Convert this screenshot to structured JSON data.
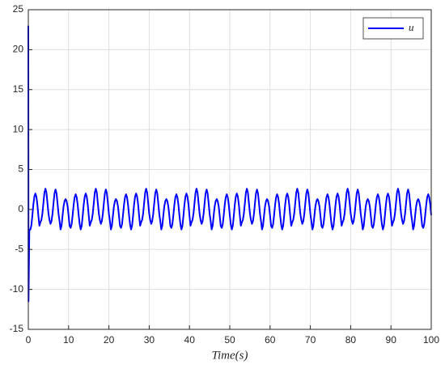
{
  "chart_data": {
    "type": "line",
    "xlabel": "Time(s)",
    "xlim": [
      0,
      100
    ],
    "xticks": [
      0,
      10,
      20,
      30,
      40,
      50,
      60,
      70,
      80,
      90,
      100
    ],
    "ylim": [
      -15,
      25
    ],
    "yticks": [
      -15,
      -10,
      -5,
      0,
      5,
      10,
      15,
      20,
      25
    ],
    "grid": true,
    "legend": "upper right",
    "x": [
      0,
      0.05,
      0.25,
      0.5,
      0.75,
      1,
      1.25,
      1.5,
      1.75,
      2,
      2.25,
      2.5,
      2.75,
      3,
      3.25,
      3.5,
      3.75,
      4,
      4.25,
      4.5,
      4.75,
      5,
      5.25,
      5.5,
      5.75,
      6,
      6.25,
      6.5,
      6.75,
      7,
      7.25,
      7.5,
      7.75,
      8,
      8.25,
      8.5,
      8.75,
      9,
      9.25,
      9.5,
      9.75,
      10,
      10.25,
      10.5,
      10.75,
      11,
      11.25,
      11.5,
      11.75,
      12,
      12.25,
      12.5,
      12.75,
      13,
      13.25,
      13.5,
      13.75,
      14,
      14.25,
      14.5,
      14.75,
      15,
      15.25,
      15.5,
      15.75,
      16,
      16.25,
      16.5,
      16.75,
      17,
      17.25,
      17.5,
      17.75,
      18,
      18.25,
      18.5,
      18.75,
      19,
      19.25,
      19.5,
      19.75,
      20,
      20.25,
      20.5,
      20.75,
      21,
      21.25,
      21.5,
      21.75,
      22,
      22.25,
      22.5,
      22.75,
      23,
      23.25,
      23.5,
      23.75,
      24,
      24.25,
      24.5,
      24.75,
      25,
      25.25,
      25.5,
      25.75,
      26,
      26.25,
      26.5,
      26.75,
      27,
      27.25,
      27.5,
      27.75,
      28,
      28.25,
      28.5,
      28.75,
      29,
      29.25,
      29.5,
      29.75,
      30,
      30.25,
      30.5,
      30.75,
      31,
      31.25,
      31.5,
      31.75,
      32,
      32.25,
      32.5,
      32.75,
      33,
      33.25,
      33.5,
      33.75,
      34,
      34.25,
      34.5,
      34.75,
      35,
      35.25,
      35.5,
      35.75,
      36,
      36.25,
      36.5,
      36.75,
      37,
      37.25,
      37.5,
      37.75,
      38,
      38.25,
      38.5,
      38.75,
      39,
      39.25,
      39.5,
      39.75,
      40,
      40.25,
      40.5,
      40.75,
      41,
      41.25,
      41.5,
      41.75,
      42,
      42.25,
      42.5,
      42.75,
      43,
      43.25,
      43.5,
      43.75,
      44,
      44.25,
      44.5,
      44.75,
      45,
      45.25,
      45.5,
      45.75,
      46,
      46.25,
      46.5,
      46.75,
      47,
      47.25,
      47.5,
      47.75,
      48,
      48.25,
      48.5,
      48.75,
      49,
      49.25,
      49.5,
      49.75,
      50,
      50.25,
      50.5,
      50.75,
      51,
      51.25,
      51.5,
      51.75,
      52,
      52.25,
      52.5,
      52.75,
      53,
      53.25,
      53.5,
      53.75,
      54,
      54.25,
      54.5,
      54.75,
      55,
      55.25,
      55.5,
      55.75,
      56,
      56.25,
      56.5,
      56.75,
      57,
      57.25,
      57.5,
      57.75,
      58,
      58.25,
      58.5,
      58.75,
      59,
      59.25,
      59.5,
      59.75,
      60,
      60.25,
      60.5,
      60.75,
      61,
      61.25,
      61.5,
      61.75,
      62,
      62.25,
      62.5,
      62.75,
      63,
      63.25,
      63.5,
      63.75,
      64,
      64.25,
      64.5,
      64.75,
      65,
      65.25,
      65.5,
      65.75,
      66,
      66.25,
      66.5,
      66.75,
      67,
      67.25,
      67.5,
      67.75,
      68,
      68.25,
      68.5,
      68.75,
      69,
      69.25,
      69.5,
      69.75,
      70,
      70.25,
      70.5,
      70.75,
      71,
      71.25,
      71.5,
      71.75,
      72,
      72.25,
      72.5,
      72.75,
      73,
      73.25,
      73.5,
      73.75,
      74,
      74.25,
      74.5,
      74.75,
      75,
      75.25,
      75.5,
      75.75,
      76,
      76.25,
      76.5,
      76.75,
      77,
      77.25,
      77.5,
      77.75,
      78,
      78.25,
      78.5,
      78.75,
      79,
      79.25,
      79.5,
      79.75,
      80,
      80.25,
      80.5,
      80.75,
      81,
      81.25,
      81.5,
      81.75,
      82,
      82.25,
      82.5,
      82.75,
      83,
      83.25,
      83.5,
      83.75,
      84,
      84.25,
      84.5,
      84.75,
      85,
      85.25,
      85.5,
      85.75,
      86,
      86.25,
      86.5,
      86.75,
      87,
      87.25,
      87.5,
      87.75,
      88,
      88.25,
      88.5,
      88.75,
      89,
      89.25,
      89.5,
      89.75,
      90,
      90.25,
      90.5,
      90.75,
      91,
      91.25,
      91.5,
      91.75,
      92,
      92.25,
      92.5,
      92.75,
      93,
      93.25,
      93.5,
      93.75,
      94,
      94.25,
      94.5,
      94.75,
      95,
      95.25,
      95.5,
      95.75,
      96,
      96.25,
      96.5,
      96.75,
      97,
      97.25,
      97.5,
      97.75,
      98,
      98.25,
      98.5,
      98.75,
      99,
      99.25,
      99.5,
      99.75,
      100
    ],
    "series": [
      {
        "name": "u",
        "color": "#0000ff",
        "values": [
          23,
          -11.5,
          -2.6,
          -2.5,
          -2.03,
          -0.78,
          0.62,
          1.62,
          2,
          1.62,
          0.62,
          -0.78,
          -2.03,
          -1.6,
          -1.3,
          -0.5,
          0.81,
          2.11,
          2.6,
          2.11,
          0.81,
          -0.5,
          -1.3,
          -1.8,
          -1.46,
          -0.56,
          0.78,
          2.03,
          2.5,
          2.03,
          0.78,
          -0.56,
          -1.46,
          -2.5,
          -2.03,
          -0.78,
          0.4,
          1.05,
          1.3,
          1.05,
          0.4,
          -0.78,
          -2.03,
          -2.3,
          -1.86,
          -0.71,
          0.59,
          1.54,
          1.9,
          1.54,
          0.59,
          -0.71,
          -1.86,
          -2.5,
          -2.03,
          -0.78,
          0.62,
          1.62,
          2,
          1.62,
          0.62,
          -0.78,
          -2.03,
          -1.6,
          -1.3,
          -0.5,
          0.81,
          2.11,
          2.6,
          2.11,
          0.81,
          -0.5,
          -1.3,
          -1.8,
          -1.46,
          -0.56,
          0.78,
          2.03,
          2.5,
          2.03,
          0.78,
          -0.56,
          -1.46,
          -2.5,
          -2.03,
          -0.78,
          0.4,
          1.05,
          1.3,
          1.05,
          0.4,
          -0.78,
          -2.03,
          -2.3,
          -1.86,
          -0.71,
          0.59,
          1.54,
          1.9,
          1.54,
          0.59,
          -0.71,
          -1.86,
          -2.5,
          -2.03,
          -0.78,
          0.62,
          1.62,
          2,
          1.62,
          0.62,
          -0.78,
          -2.03,
          -1.6,
          -1.3,
          -0.5,
          0.81,
          2.11,
          2.6,
          2.11,
          0.81,
          -0.5,
          -1.3,
          -1.8,
          -1.46,
          -0.56,
          0.78,
          2.03,
          2.5,
          2.03,
          0.78,
          -0.56,
          -1.46,
          -2.5,
          -2.03,
          -0.78,
          0.4,
          1.05,
          1.3,
          1.05,
          0.4,
          -0.78,
          -2.03,
          -2.3,
          -1.86,
          -0.71,
          0.59,
          1.54,
          1.9,
          1.54,
          0.59,
          -0.71,
          -1.86,
          -2.5,
          -2.03,
          -0.78,
          0.62,
          1.62,
          2,
          1.62,
          0.62,
          -0.78,
          -2.03,
          -1.6,
          -1.3,
          -0.5,
          0.81,
          2.11,
          2.6,
          2.11,
          0.81,
          -0.5,
          -1.3,
          -1.8,
          -1.46,
          -0.56,
          0.78,
          2.03,
          2.5,
          2.03,
          0.78,
          -0.56,
          -1.46,
          -2.5,
          -2.03,
          -0.78,
          0.4,
          1.05,
          1.3,
          1.05,
          0.4,
          -0.78,
          -2.03,
          -2.3,
          -1.86,
          -0.71,
          0.59,
          1.54,
          1.9,
          1.54,
          0.59,
          -0.71,
          -1.86,
          -2.5,
          -2.03,
          -0.78,
          0.62,
          1.62,
          2,
          1.62,
          0.62,
          -0.78,
          -2.03,
          -1.6,
          -1.3,
          -0.5,
          0.81,
          2.11,
          2.6,
          2.11,
          0.81,
          -0.5,
          -1.3,
          -1.8,
          -1.46,
          -0.56,
          0.78,
          2.03,
          2.5,
          2.03,
          0.78,
          -0.56,
          -1.46,
          -2.5,
          -2.03,
          -0.78,
          0.4,
          1.05,
          1.3,
          1.05,
          0.4,
          -0.78,
          -2.03,
          -2.3,
          -1.86,
          -0.71,
          0.59,
          1.54,
          1.9,
          1.54,
          0.59,
          -0.71,
          -1.86,
          -2.5,
          -2.03,
          -0.78,
          0.62,
          1.62,
          2,
          1.62,
          0.62,
          -0.78,
          -2.03,
          -1.6,
          -1.3,
          -0.5,
          0.81,
          2.11,
          2.6,
          2.11,
          0.81,
          -0.5,
          -1.3,
          -1.8,
          -1.46,
          -0.56,
          0.78,
          2.03,
          2.5,
          2.03,
          0.78,
          -0.56,
          -1.46,
          -2.5,
          -2.03,
          -0.78,
          0.4,
          1.05,
          1.3,
          1.05,
          0.4,
          -0.78,
          -2.03,
          -2.3,
          -1.86,
          -0.71,
          0.59,
          1.54,
          1.9,
          1.54,
          0.59,
          -0.71,
          -1.86,
          -2.5,
          -2.03,
          -0.78,
          0.62,
          1.62,
          2,
          1.62,
          0.62,
          -0.78,
          -2.03,
          -1.6,
          -1.3,
          -0.5,
          0.81,
          2.11,
          2.6,
          2.11,
          0.81,
          -0.5,
          -1.3,
          -1.8,
          -1.46,
          -0.56,
          0.78,
          2.03,
          2.5,
          2.03,
          0.78,
          -0.56,
          -1.46,
          -2.5,
          -2.03,
          -0.78,
          0.4,
          1.05,
          1.3,
          1.05,
          0.4,
          -0.78,
          -2.03,
          -2.3,
          -1.86,
          -0.71,
          0.59,
          1.54,
          1.9,
          1.54,
          0.59,
          -0.71,
          -1.86,
          -2.5,
          -2.03,
          -0.78,
          0.62,
          1.62,
          2,
          1.62,
          0.62,
          -0.78,
          -2.03,
          -1.6,
          -1.3,
          -0.5,
          0.81,
          2.11,
          2.6,
          2.11,
          0.81,
          -0.5,
          -1.3,
          -1.8,
          -1.46,
          -0.56,
          0.78,
          2.03,
          2.5,
          2.03,
          0.78,
          -0.56,
          -1.46,
          -2.5,
          -2.03,
          -0.78,
          0.4,
          1.05,
          1.3,
          1.05,
          0.4,
          -0.78,
          -2.03,
          -2.3,
          -1.86,
          -0.71,
          0.59,
          1.54,
          1.9,
          1.54,
          0.59,
          -0.71
        ]
      }
    ]
  }
}
